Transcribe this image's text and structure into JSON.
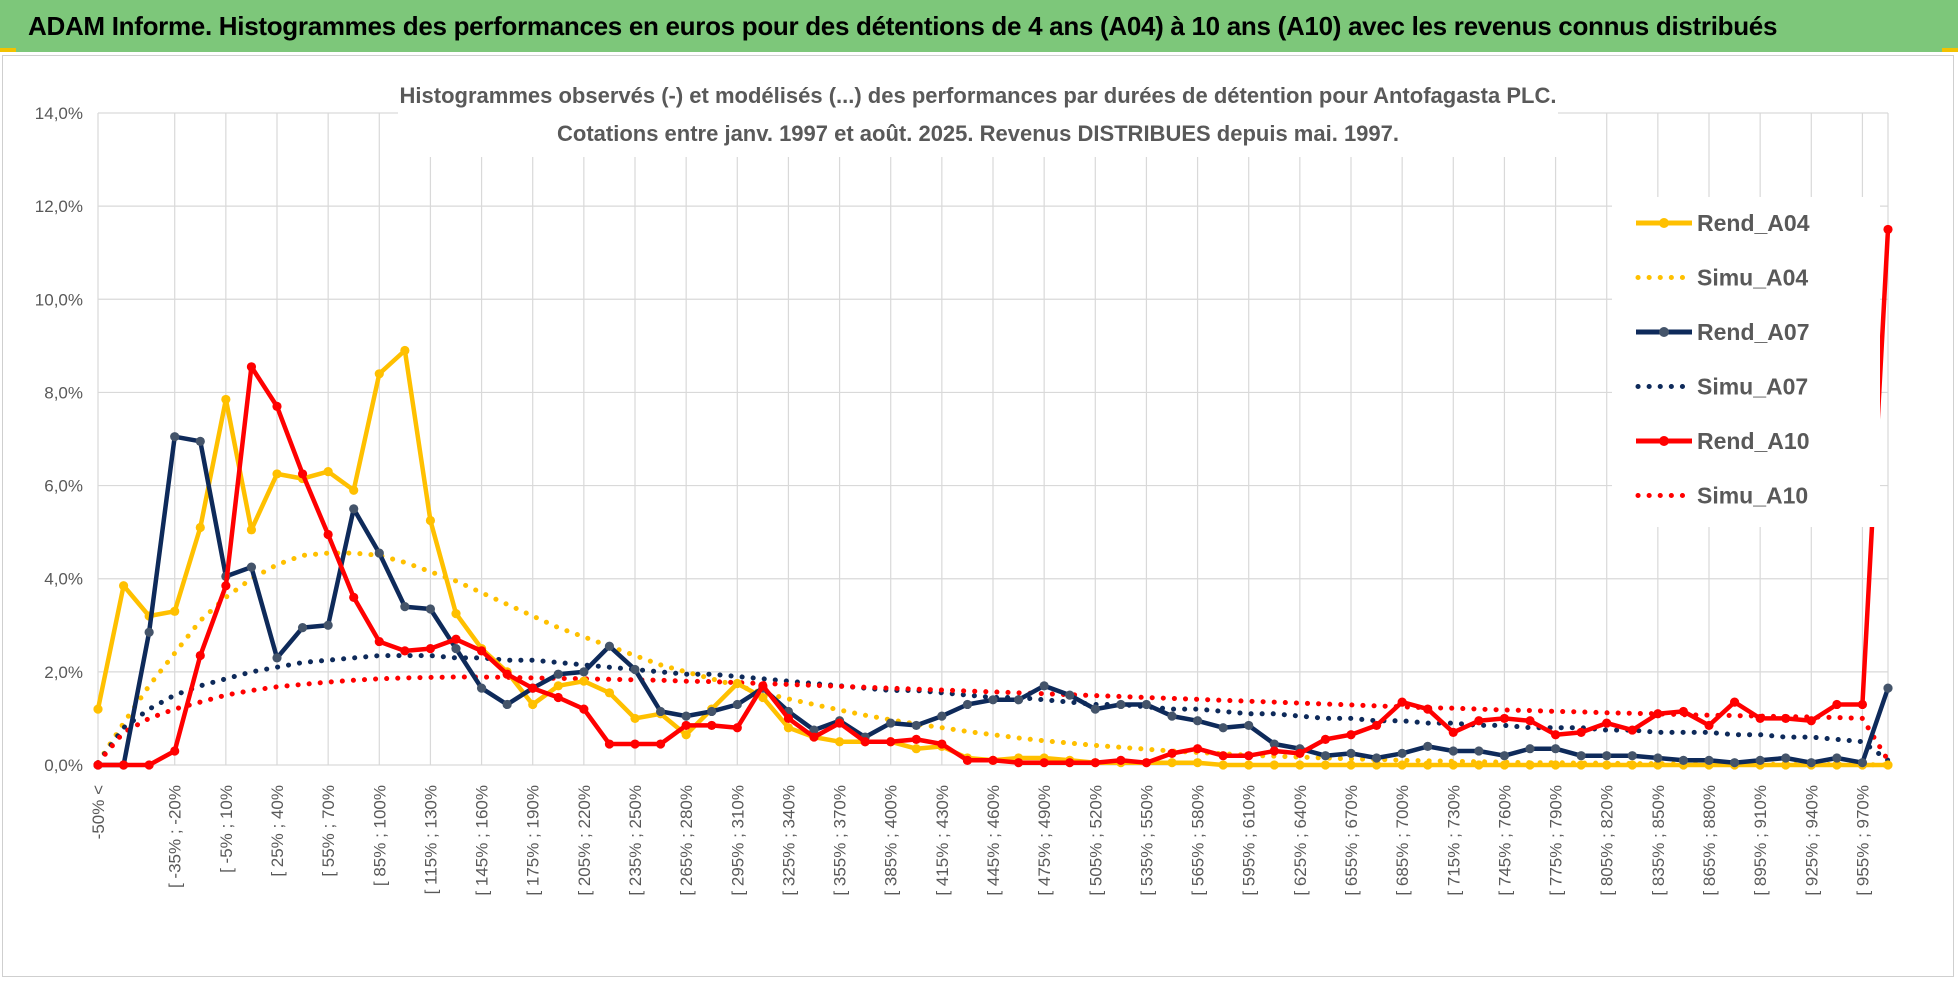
{
  "banner": {
    "title": "ADAM Informe. Histogrammes des performances en euros pour des détentions de 4 ans (A04) à 10 ans (A10) avec les revenus connus distribués"
  },
  "colors": {
    "banner_bg": "#7dc77a",
    "a04": "#ffc000",
    "a07": "#0e2a5a",
    "a07_marker": "#44546a",
    "a10": "#ff0000",
    "grid": "#d9d9d9"
  },
  "chart_data": {
    "type": "line",
    "title_lines": [
      "Histogrammes observés (-) et modélisés (...)  des performances par durées de détention pour Antofagasta PLC.",
      "Cotations entre janv. 1997 et août. 2025. Revenus DISTRIBUES depuis mai. 1997."
    ],
    "ylim": [
      0,
      14
    ],
    "y_ticks": [
      "0,0%",
      "2,0%",
      "4,0%",
      "6,0%",
      "8,0%",
      "10,0%",
      "12,0%",
      "14,0%"
    ],
    "grid": true,
    "legend_position": "right",
    "x_tick_labels": [
      "-50% <",
      "[ -35% ; -20%",
      "[ -5% ; 10%",
      "[ 25% ; 40%",
      "[ 55% ; 70%",
      "[ 85% ; 100%",
      "[ 115% ; 130%",
      "[ 145% ; 160%",
      "[ 175% ; 190%",
      "[ 205% ; 220%",
      "[ 235% ; 250%",
      "[ 265% ; 280%",
      "[ 295% ; 310%",
      "[ 325% ; 340%",
      "[ 355% ; 370%",
      "[ 385% ; 400%",
      "[ 415% ; 430%",
      "[ 445% ; 460%",
      "[ 475% ; 490%",
      "[ 505% ; 520%",
      "[ 535% ; 550%",
      "[ 565% ; 580%",
      "[ 595% ; 610%",
      "[ 625% ; 640%",
      "[ 655% ; 670%",
      "[ 685% ; 700%",
      "[ 715% ; 730%",
      "[ 745% ; 760%",
      "[ 775% ; 790%",
      "[ 805% ; 820%",
      "[ 835% ; 850%",
      "[ 865% ; 880%",
      "[ 895% ; 910%",
      "[ 925% ; 940%",
      "[ 955% ; 970%"
    ],
    "series": [
      {
        "name": "Rend_A04",
        "style": "solid",
        "color": "#ffc000",
        "values": [
          1.2,
          3.85,
          3.2,
          3.3,
          5.1,
          7.85,
          5.05,
          6.25,
          6.15,
          6.3,
          5.9,
          8.4,
          8.9,
          5.25,
          3.25,
          2.5,
          2.0,
          1.3,
          1.7,
          1.8,
          1.55,
          1.0,
          1.1,
          0.65,
          1.2,
          1.75,
          1.45,
          0.8,
          0.6,
          0.5,
          0.5,
          0.5,
          0.35,
          0.4,
          0.15,
          0.1,
          0.15,
          0.15,
          0.1,
          0.05,
          0.05,
          0.05,
          0.05,
          0.05,
          0.0,
          0.0,
          0.0,
          0.0,
          0.0,
          0.0,
          0.0,
          0.0,
          0.0,
          0.0,
          0.0,
          0.0,
          0.0,
          0.0,
          0.0,
          0.0,
          0.0,
          0.0,
          0.0,
          0.0,
          0.0,
          0.0,
          0.0,
          0.0,
          0.0,
          0.0,
          0.0
        ]
      },
      {
        "name": "Simu_A04",
        "style": "dotted",
        "color": "#ffc000",
        "values": [
          0.05,
          0.9,
          1.7,
          2.4,
          3.1,
          3.6,
          4.0,
          4.3,
          4.5,
          4.55,
          4.55,
          4.5,
          4.35,
          4.15,
          3.95,
          3.7,
          3.45,
          3.2,
          2.95,
          2.75,
          2.55,
          2.35,
          2.15,
          2.0,
          1.85,
          1.7,
          1.55,
          1.42,
          1.3,
          1.18,
          1.07,
          0.97,
          0.88,
          0.8,
          0.72,
          0.65,
          0.58,
          0.52,
          0.47,
          0.42,
          0.38,
          0.34,
          0.3,
          0.27,
          0.24,
          0.21,
          0.19,
          0.17,
          0.15,
          0.13,
          0.12,
          0.1,
          0.09,
          0.08,
          0.07,
          0.06,
          0.05,
          0.05,
          0.04,
          0.04,
          0.03,
          0.03,
          0.02,
          0.02,
          0.02,
          0.02,
          0.01,
          0.01,
          0.01,
          0.01,
          0.0
        ]
      },
      {
        "name": "Rend_A07",
        "style": "solid",
        "color": "#0e2a5a",
        "values": [
          0.0,
          0.0,
          2.85,
          7.05,
          6.95,
          4.05,
          4.25,
          2.3,
          2.95,
          3.0,
          5.5,
          4.55,
          3.4,
          3.35,
          2.5,
          1.65,
          1.3,
          1.65,
          1.95,
          2.0,
          2.55,
          2.05,
          1.15,
          1.05,
          1.15,
          1.3,
          1.65,
          1.15,
          0.75,
          0.95,
          0.6,
          0.9,
          0.85,
          1.05,
          1.3,
          1.4,
          1.4,
          1.7,
          1.5,
          1.2,
          1.3,
          1.3,
          1.05,
          0.95,
          0.8,
          0.85,
          0.45,
          0.35,
          0.2,
          0.25,
          0.15,
          0.25,
          0.4,
          0.3,
          0.3,
          0.2,
          0.35,
          0.35,
          0.2,
          0.2,
          0.2,
          0.15,
          0.1,
          0.1,
          0.05,
          0.1,
          0.15,
          0.05,
          0.15,
          0.05,
          1.65
        ]
      },
      {
        "name": "Simu_A07",
        "style": "dotted",
        "color": "#0e2a5a",
        "values": [
          0.05,
          0.8,
          1.2,
          1.5,
          1.7,
          1.85,
          2.0,
          2.1,
          2.2,
          2.25,
          2.3,
          2.35,
          2.35,
          2.35,
          2.3,
          2.3,
          2.25,
          2.25,
          2.2,
          2.15,
          2.1,
          2.05,
          2.0,
          1.95,
          1.95,
          1.9,
          1.85,
          1.8,
          1.75,
          1.7,
          1.65,
          1.6,
          1.6,
          1.55,
          1.5,
          1.45,
          1.45,
          1.4,
          1.35,
          1.3,
          1.3,
          1.25,
          1.2,
          1.2,
          1.15,
          1.1,
          1.1,
          1.05,
          1.0,
          1.0,
          0.95,
          0.95,
          0.9,
          0.9,
          0.85,
          0.85,
          0.8,
          0.8,
          0.8,
          0.75,
          0.75,
          0.7,
          0.7,
          0.7,
          0.65,
          0.65,
          0.6,
          0.6,
          0.55,
          0.5,
          0.1
        ]
      },
      {
        "name": "Rend_A10",
        "style": "solid",
        "color": "#ff0000",
        "values": [
          0.0,
          0.0,
          0.0,
          0.3,
          2.35,
          3.85,
          8.55,
          7.7,
          6.25,
          4.95,
          3.6,
          2.65,
          2.45,
          2.5,
          2.7,
          2.45,
          1.95,
          1.65,
          1.45,
          1.2,
          0.45,
          0.45,
          0.45,
          0.85,
          0.85,
          0.8,
          1.7,
          1.0,
          0.6,
          0.9,
          0.5,
          0.5,
          0.55,
          0.45,
          0.1,
          0.1,
          0.05,
          0.05,
          0.05,
          0.05,
          0.1,
          0.05,
          0.25,
          0.35,
          0.2,
          0.2,
          0.3,
          0.25,
          0.55,
          0.65,
          0.85,
          1.35,
          1.2,
          0.7,
          0.95,
          1.0,
          0.95,
          0.65,
          0.7,
          0.9,
          0.75,
          1.1,
          1.15,
          0.85,
          1.35,
          1.0,
          1.0,
          0.95,
          1.3,
          1.3,
          11.5
        ]
      },
      {
        "name": "Simu_A10",
        "style": "dotted",
        "color": "#ff0000",
        "values": [
          0.05,
          0.7,
          1.0,
          1.2,
          1.35,
          1.5,
          1.6,
          1.68,
          1.73,
          1.78,
          1.82,
          1.85,
          1.87,
          1.88,
          1.89,
          1.89,
          1.88,
          1.87,
          1.86,
          1.85,
          1.84,
          1.83,
          1.82,
          1.8,
          1.79,
          1.77,
          1.75,
          1.73,
          1.71,
          1.69,
          1.67,
          1.65,
          1.63,
          1.61,
          1.59,
          1.57,
          1.55,
          1.53,
          1.51,
          1.49,
          1.47,
          1.45,
          1.43,
          1.41,
          1.39,
          1.37,
          1.35,
          1.33,
          1.31,
          1.29,
          1.27,
          1.25,
          1.23,
          1.22,
          1.2,
          1.18,
          1.17,
          1.15,
          1.14,
          1.12,
          1.11,
          1.1,
          1.08,
          1.07,
          1.06,
          1.05,
          1.04,
          1.03,
          1.02,
          1.0,
          0.1
        ]
      }
    ]
  }
}
